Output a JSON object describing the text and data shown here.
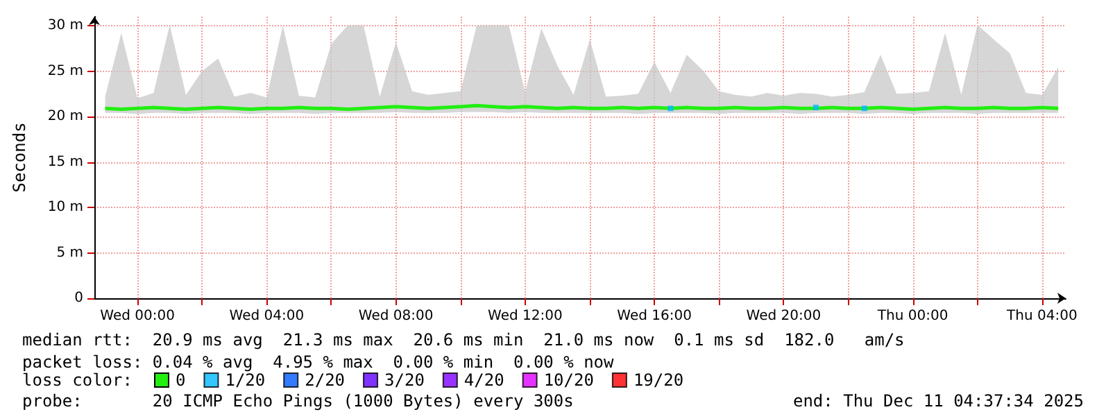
{
  "chart_data": {
    "type": "line",
    "ylabel": "Seconds",
    "legend_title": "loss color:",
    "legend": "bottom left",
    "grid": true,
    "marker": "none",
    "xlim": [
      "2025-12-09T22:40",
      "2025-12-11T04:44"
    ],
    "xticks": [
      {
        "value": "2025-12-10T00:00",
        "label": "Wed 00:00"
      },
      {
        "value": "2025-12-10T02:00",
        "label": null
      },
      {
        "value": "2025-12-10T04:00",
        "label": "Wed 04:00"
      },
      {
        "value": "2025-12-10T06:00",
        "label": null
      },
      {
        "value": "2025-12-10T08:00",
        "label": "Wed 08:00"
      },
      {
        "value": "2025-12-10T10:00",
        "label": null
      },
      {
        "value": "2025-12-10T12:00",
        "label": "Wed 12:00"
      },
      {
        "value": "2025-12-10T14:00",
        "label": null
      },
      {
        "value": "2025-12-10T16:00",
        "label": "Wed 16:00"
      },
      {
        "value": "2025-12-10T18:00",
        "label": null
      },
      {
        "value": "2025-12-10T20:00",
        "label": "Wed 20:00"
      },
      {
        "value": "2025-12-10T22:00",
        "label": null
      },
      {
        "value": "2025-12-11T00:00",
        "label": "Thu 00:00"
      },
      {
        "value": "2025-12-11T02:00",
        "label": null
      },
      {
        "value": "2025-12-11T04:00",
        "label": "Thu 04:00"
      }
    ],
    "ylim": [
      0,
      31
    ],
    "yticks": [
      0,
      {
        "value": 5,
        "label": "5 m"
      },
      {
        "value": 10,
        "label": "10 m"
      },
      {
        "value": 15,
        "label": "15 m"
      },
      {
        "value": 20,
        "label": "20 m"
      },
      {
        "value": 25,
        "label": "25 m"
      },
      {
        "value": 30,
        "label": "30 m"
      }
    ],
    "x": [
      "2025-12-09T23:00",
      "2025-12-09T23:30",
      "2025-12-10T00:00",
      "2025-12-10T00:30",
      "2025-12-10T01:00",
      "2025-12-10T01:30",
      "2025-12-10T02:00",
      "2025-12-10T02:30",
      "2025-12-10T03:00",
      "2025-12-10T03:30",
      "2025-12-10T04:00",
      "2025-12-10T04:30",
      "2025-12-10T05:00",
      "2025-12-10T05:30",
      "2025-12-10T06:00",
      "2025-12-10T06:30",
      "2025-12-10T07:00",
      "2025-12-10T07:30",
      "2025-12-10T08:00",
      "2025-12-10T08:30",
      "2025-12-10T09:00",
      "2025-12-10T09:30",
      "2025-12-10T10:00",
      "2025-12-10T10:30",
      "2025-12-10T11:00",
      "2025-12-10T11:30",
      "2025-12-10T12:00",
      "2025-12-10T12:30",
      "2025-12-10T13:00",
      "2025-12-10T13:30",
      "2025-12-10T14:00",
      "2025-12-10T14:30",
      "2025-12-10T15:00",
      "2025-12-10T15:30",
      "2025-12-10T16:00",
      "2025-12-10T16:30",
      "2025-12-10T17:00",
      "2025-12-10T17:30",
      "2025-12-10T18:00",
      "2025-12-10T18:30",
      "2025-12-10T19:00",
      "2025-12-10T19:30",
      "2025-12-10T20:00",
      "2025-12-10T20:30",
      "2025-12-10T21:00",
      "2025-12-10T21:30",
      "2025-12-10T22:00",
      "2025-12-10T22:30",
      "2025-12-10T23:00",
      "2025-12-10T23:30",
      "2025-12-11T00:00",
      "2025-12-11T00:30",
      "2025-12-11T01:00",
      "2025-12-11T01:30",
      "2025-12-11T02:00",
      "2025-12-11T02:30",
      "2025-12-11T03:00",
      "2025-12-11T03:30",
      "2025-12-11T04:00",
      "2025-12-11T04:30"
    ],
    "series": [
      {
        "name": "0",
        "color": "#22ee11",
        "values": [
          20.9,
          20.8,
          20.9,
          21,
          20.9,
          20.8,
          20.9,
          21,
          20.9,
          20.8,
          20.9,
          20.9,
          21,
          20.9,
          20.9,
          20.8,
          20.9,
          21,
          21.1,
          21,
          20.9,
          21,
          21.1,
          21.2,
          21.1,
          21,
          21.1,
          21,
          20.9,
          21,
          20.9,
          20.9,
          21,
          20.9,
          21,
          20.9,
          21,
          20.9,
          20.9,
          21,
          20.9,
          20.9,
          21,
          20.9,
          20.9,
          21,
          20.9,
          20.9,
          21,
          20.9,
          20.8,
          20.9,
          21,
          20.9,
          20.9,
          21,
          20.9,
          20.9,
          21,
          20.9
        ],
        "lower": [
          20.4,
          20.4,
          20.3,
          20.4,
          20.4,
          20.3,
          20.4,
          20.4,
          20.4,
          20.3,
          20.4,
          20.4,
          20.4,
          20.3,
          20.4,
          20.4,
          20.4,
          20.4,
          20.5,
          20.4,
          20.4,
          20.4,
          20.5,
          20.5,
          20.5,
          20.4,
          20.5,
          20.4,
          20.4,
          20.4,
          20.4,
          20.4,
          20.4,
          20.3,
          20.4,
          20.4,
          20.4,
          20.4,
          20.3,
          20.4,
          20.4,
          20.4,
          20.4,
          20.3,
          20.4,
          20.4,
          20.4,
          20.3,
          20.4,
          20.4,
          20.3,
          20.4,
          20.4,
          20.4,
          20.3,
          20.4,
          20.4,
          20.4,
          20.4,
          20.4
        ],
        "upper": [
          22.2,
          29.2,
          22,
          22.6,
          30.1,
          22.4,
          25,
          26.4,
          22.2,
          22.6,
          22.1,
          30,
          22.3,
          22.1,
          28,
          30,
          30,
          22.2,
          28.2,
          22.8,
          22.4,
          22.6,
          22.8,
          30,
          30,
          30,
          22.7,
          29.7,
          25.6,
          22.4,
          28.5,
          22.2,
          22.3,
          22.5,
          26,
          22.6,
          26.8,
          25.1,
          22.8,
          22.4,
          22.2,
          22.6,
          22.3,
          22.6,
          22.5,
          22.2,
          22.4,
          22.7,
          26.8,
          22.5,
          22.6,
          22.8,
          29.2,
          22.4,
          30.1,
          28.5,
          27,
          22.6,
          22.4,
          25.4
        ]
      },
      {
        "name": "1/20",
        "color": "#00b8ff",
        "type": "scatter",
        "marker": "square",
        "values": [
          null,
          null,
          null,
          null,
          null,
          null,
          null,
          null,
          null,
          null,
          null,
          null,
          null,
          null,
          null,
          null,
          null,
          null,
          null,
          null,
          null,
          null,
          null,
          null,
          null,
          null,
          null,
          null,
          null,
          null,
          null,
          null,
          null,
          null,
          null,
          20.9,
          null,
          null,
          null,
          null,
          null,
          null,
          null,
          null,
          21,
          null,
          null,
          20.9,
          null,
          null,
          null,
          null,
          null,
          null,
          null,
          null,
          null,
          null,
          null,
          null
        ]
      },
      {
        "name": "2/20",
        "color": "#0059ff",
        "type": "scatter",
        "marker": "square",
        "values": [
          null,
          null,
          null,
          null,
          null,
          null,
          null,
          null,
          null,
          null,
          null,
          null,
          null,
          null,
          null,
          null,
          null,
          null,
          null,
          null,
          null,
          null,
          null,
          null,
          null,
          null,
          null,
          null,
          null,
          null,
          null,
          null,
          null,
          null,
          null,
          null,
          null,
          null,
          null,
          null,
          null,
          null,
          null,
          null,
          null,
          null,
          null,
          null,
          null,
          null,
          null,
          null,
          null,
          null,
          null,
          null,
          null,
          null,
          null,
          null
        ]
      },
      {
        "name": "3/20",
        "color": "#5e00ff",
        "type": "scatter",
        "marker": "square",
        "values": [
          null,
          null,
          null,
          null,
          null,
          null,
          null,
          null,
          null,
          null,
          null,
          null,
          null,
          null,
          null,
          null,
          null,
          null,
          null,
          null,
          null,
          null,
          null,
          null,
          null,
          null,
          null,
          null,
          null,
          null,
          null,
          null,
          null,
          null,
          null,
          null,
          null,
          null,
          null,
          null,
          null,
          null,
          null,
          null,
          null,
          null,
          null,
          null,
          null,
          null,
          null,
          null,
          null,
          null,
          null,
          null,
          null,
          null,
          null,
          null
        ]
      },
      {
        "name": "4/20",
        "color": "#7e00ff",
        "type": "scatter",
        "marker": "square",
        "values": [
          null,
          null,
          null,
          null,
          null,
          null,
          null,
          null,
          null,
          null,
          null,
          null,
          null,
          null,
          null,
          null,
          null,
          null,
          null,
          null,
          null,
          null,
          null,
          null,
          null,
          null,
          null,
          null,
          null,
          null,
          null,
          null,
          null,
          null,
          null,
          null,
          null,
          null,
          null,
          null,
          null,
          null,
          null,
          null,
          null,
          null,
          null,
          null,
          null,
          null,
          null,
          null,
          null,
          null,
          null,
          null,
          null,
          null,
          null,
          null
        ]
      },
      {
        "name": "10/20",
        "color": "#dd00ff",
        "type": "scatter",
        "marker": "square",
        "values": [
          null,
          null,
          null,
          null,
          null,
          null,
          null,
          null,
          null,
          null,
          null,
          null,
          null,
          null,
          null,
          null,
          null,
          null,
          null,
          null,
          null,
          null,
          null,
          null,
          null,
          null,
          null,
          null,
          null,
          null,
          null,
          null,
          null,
          null,
          null,
          null,
          null,
          null,
          null,
          null,
          null,
          null,
          null,
          null,
          null,
          null,
          null,
          null,
          null,
          null,
          null,
          null,
          null,
          null,
          null,
          null,
          null,
          null,
          null,
          null
        ]
      },
      {
        "name": "19/20",
        "color": "#ff0000",
        "type": "scatter",
        "marker": "square",
        "values": [
          null,
          null,
          null,
          null,
          null,
          null,
          null,
          null,
          null,
          null,
          null,
          null,
          null,
          null,
          null,
          null,
          null,
          null,
          null,
          null,
          null,
          null,
          null,
          null,
          null,
          null,
          null,
          null,
          null,
          null,
          null,
          null,
          null,
          null,
          null,
          null,
          null,
          null,
          null,
          null,
          null,
          null,
          null,
          null,
          null,
          null,
          null,
          null,
          null,
          null,
          null,
          null,
          null,
          null,
          null,
          null,
          null,
          null,
          null,
          null
        ]
      }
    ],
    "annotations": [
      "median rtt:  20.9 ms avg  21.3 ms max  20.6 ms min  21.0 ms now  0.1 ms sd  182.0   am/s",
      "packet loss: 0.04 % avg  4.95 % max  0.00 % min  0.00 % now",
      "probe:       20 ICMP Echo Pings (1000 Bytes) every 300s",
      "end: Thu Dec 11 04:37:34 2025"
    ]
  }
}
